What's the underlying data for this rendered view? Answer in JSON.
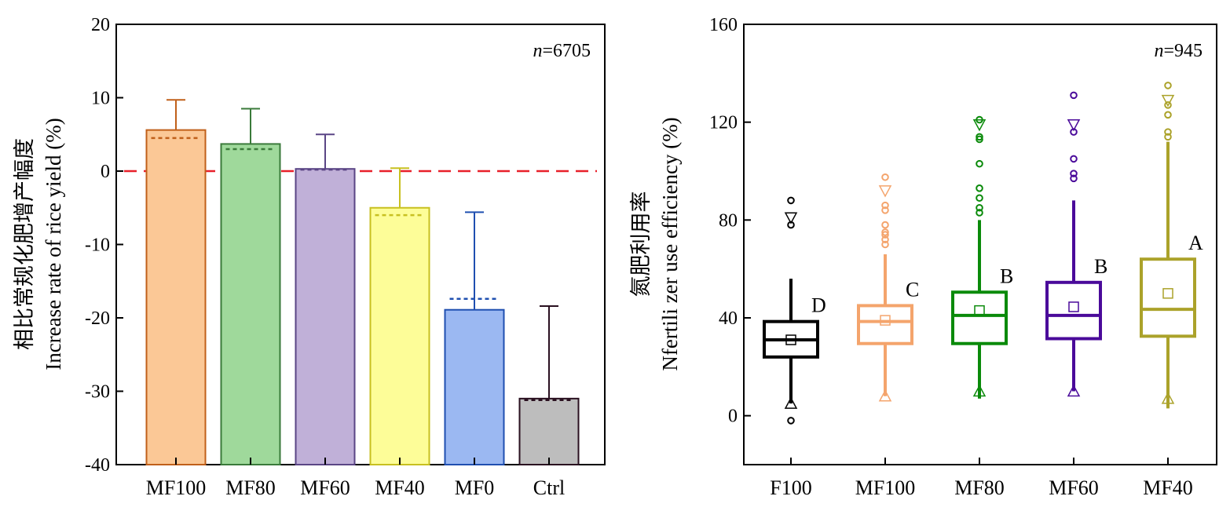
{
  "chart_data": [
    {
      "type": "bar",
      "ylabel_cn": "相比常规化肥增产幅度",
      "ylabel_en": "Increase rate of rice yield (%)",
      "n_label": {
        "prefix": "n",
        "text": "=6705"
      },
      "ylim": [
        -40,
        20
      ],
      "yticks": [
        20,
        10,
        0,
        -10,
        -20,
        -30,
        -40
      ],
      "ytick_labels": [
        "20",
        "10",
        "0",
        "-10",
        "-20",
        "-30",
        "-40"
      ],
      "reference_line": 0,
      "categories": [
        "MF100",
        "MF80",
        "MF60",
        "MF40",
        "MF0",
        "Ctrl"
      ],
      "means": [
        5.6,
        3.7,
        0.3,
        -5.0,
        -18.9,
        -31.0
      ],
      "medians": [
        4.5,
        3.0,
        0.2,
        -6.0,
        -17.4,
        -31.2
      ],
      "error_tops": [
        9.7,
        8.5,
        5.0,
        0.4,
        -5.6,
        -18.4
      ],
      "fill_colors": [
        "#fbc896",
        "#9fd99b",
        "#c0b0d8",
        "#fdfd98",
        "#9bb8f2",
        "#bdbdbd"
      ],
      "stroke_colors": [
        "#c0601a",
        "#3a7a3a",
        "#5a4585",
        "#c8c020",
        "#1f4fb0",
        "#2a1020"
      ]
    },
    {
      "type": "box",
      "ylabel_cn": "氮肥利用率",
      "ylabel_en": "Nfertili zer use efficiency (%)",
      "n_label": {
        "prefix": "n",
        "text": "=945"
      },
      "ylim": [
        -20,
        160
      ],
      "yticks": [
        160,
        120,
        80,
        40,
        0
      ],
      "ytick_labels": [
        "160",
        "120",
        "80",
        "40",
        "0"
      ],
      "categories": [
        "F100",
        "MF100",
        "MF80",
        "MF60",
        "MF40"
      ],
      "colors": [
        "#000000",
        "#f4a46c",
        "#0a8a0a",
        "#4a0a9a",
        "#aba22a"
      ],
      "boxes": [
        {
          "q1": 24,
          "median": 31,
          "q3": 38.5,
          "mean": 31,
          "whisker_low": 5,
          "whisker_high": 56,
          "p1": 5,
          "p99": 81,
          "min": -2,
          "max": 88,
          "outliers": [
            78,
            88
          ],
          "letter": "D"
        },
        {
          "q1": 29.5,
          "median": 38.5,
          "q3": 45,
          "mean": 39,
          "whisker_low": 8,
          "whisker_high": 66,
          "p1": 8,
          "p99": 92,
          "min": 8,
          "max": 97.5,
          "outliers": [
            70,
            72,
            74,
            75,
            78,
            84,
            86,
            97.5
          ],
          "letter": "C"
        },
        {
          "q1": 29.5,
          "median": 41,
          "q3": 50.5,
          "mean": 43,
          "whisker_low": 7,
          "whisker_high": 80,
          "p1": 10,
          "p99": 119,
          "min": 7,
          "max": 121,
          "outliers": [
            83,
            85,
            89,
            93,
            103,
            113,
            114,
            121
          ],
          "letter": "B"
        },
        {
          "q1": 31.5,
          "median": 41,
          "q3": 54.5,
          "mean": 44.5,
          "whisker_low": 10,
          "whisker_high": 88,
          "p1": 10,
          "p99": 119,
          "min": 10,
          "max": 131,
          "outliers": [
            97,
            99,
            105,
            116,
            131
          ],
          "letter": "B"
        },
        {
          "q1": 32.5,
          "median": 43.5,
          "q3": 64,
          "mean": 50,
          "whisker_low": 3,
          "whisker_high": 112,
          "p1": 7,
          "p99": 129,
          "min": 3,
          "max": 135,
          "outliers": [
            114,
            116,
            123,
            127,
            135
          ],
          "letter": "A"
        }
      ]
    }
  ]
}
